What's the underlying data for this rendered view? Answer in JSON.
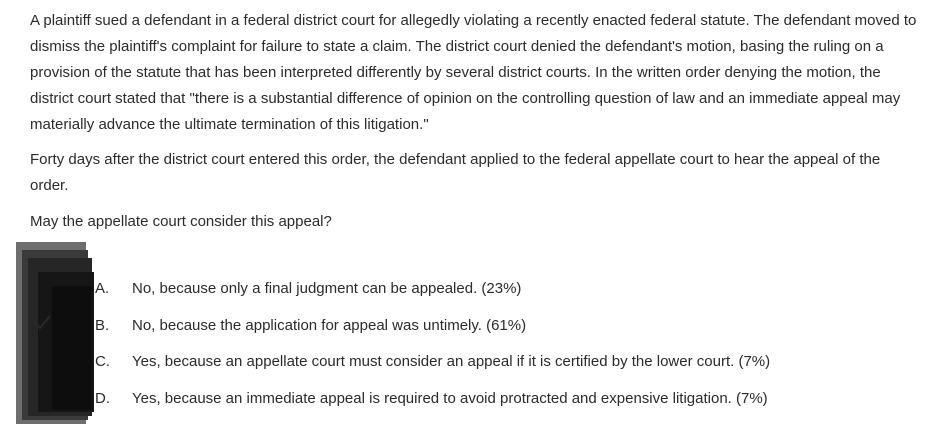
{
  "question": {
    "stem": [
      "A plaintiff sued a defendant in a federal district court for allegedly violating a recently enacted federal statute.  The defendant moved to dismiss the plaintiff's complaint for failure to state a claim.  The district court denied the defendant's motion, basing the ruling on a provision of the statute that has been interpreted differently by several district courts.  In the written order denying the motion, the district court stated that \"there is a substantial difference of opinion on the controlling question of law and an immediate appeal may materially advance the ultimate termination of this litigation.\"",
      "Forty days after the district court entered this order, the defendant applied to the federal appellate court to hear the appeal of the order."
    ],
    "prompt": "May the appellate court consider this appeal?"
  },
  "choices": [
    {
      "letter": "A.",
      "text": "No, because only a final judgment can be appealed. (23%)"
    },
    {
      "letter": "B.",
      "text": "No, because the application for appeal was untimely. (61%)"
    },
    {
      "letter": "C.",
      "text": "Yes, because an appellate court must consider an appeal if it is certified by the lower court. (7%)"
    },
    {
      "letter": "D.",
      "text": "Yes, because an immediate appeal is required to avoid protracted and expensive litigation. (7%)"
    }
  ],
  "correct_indicator_icon": "checkmark-icon",
  "colors": {
    "text": "#2b2b2b",
    "overlay": "#1a1a1a"
  }
}
